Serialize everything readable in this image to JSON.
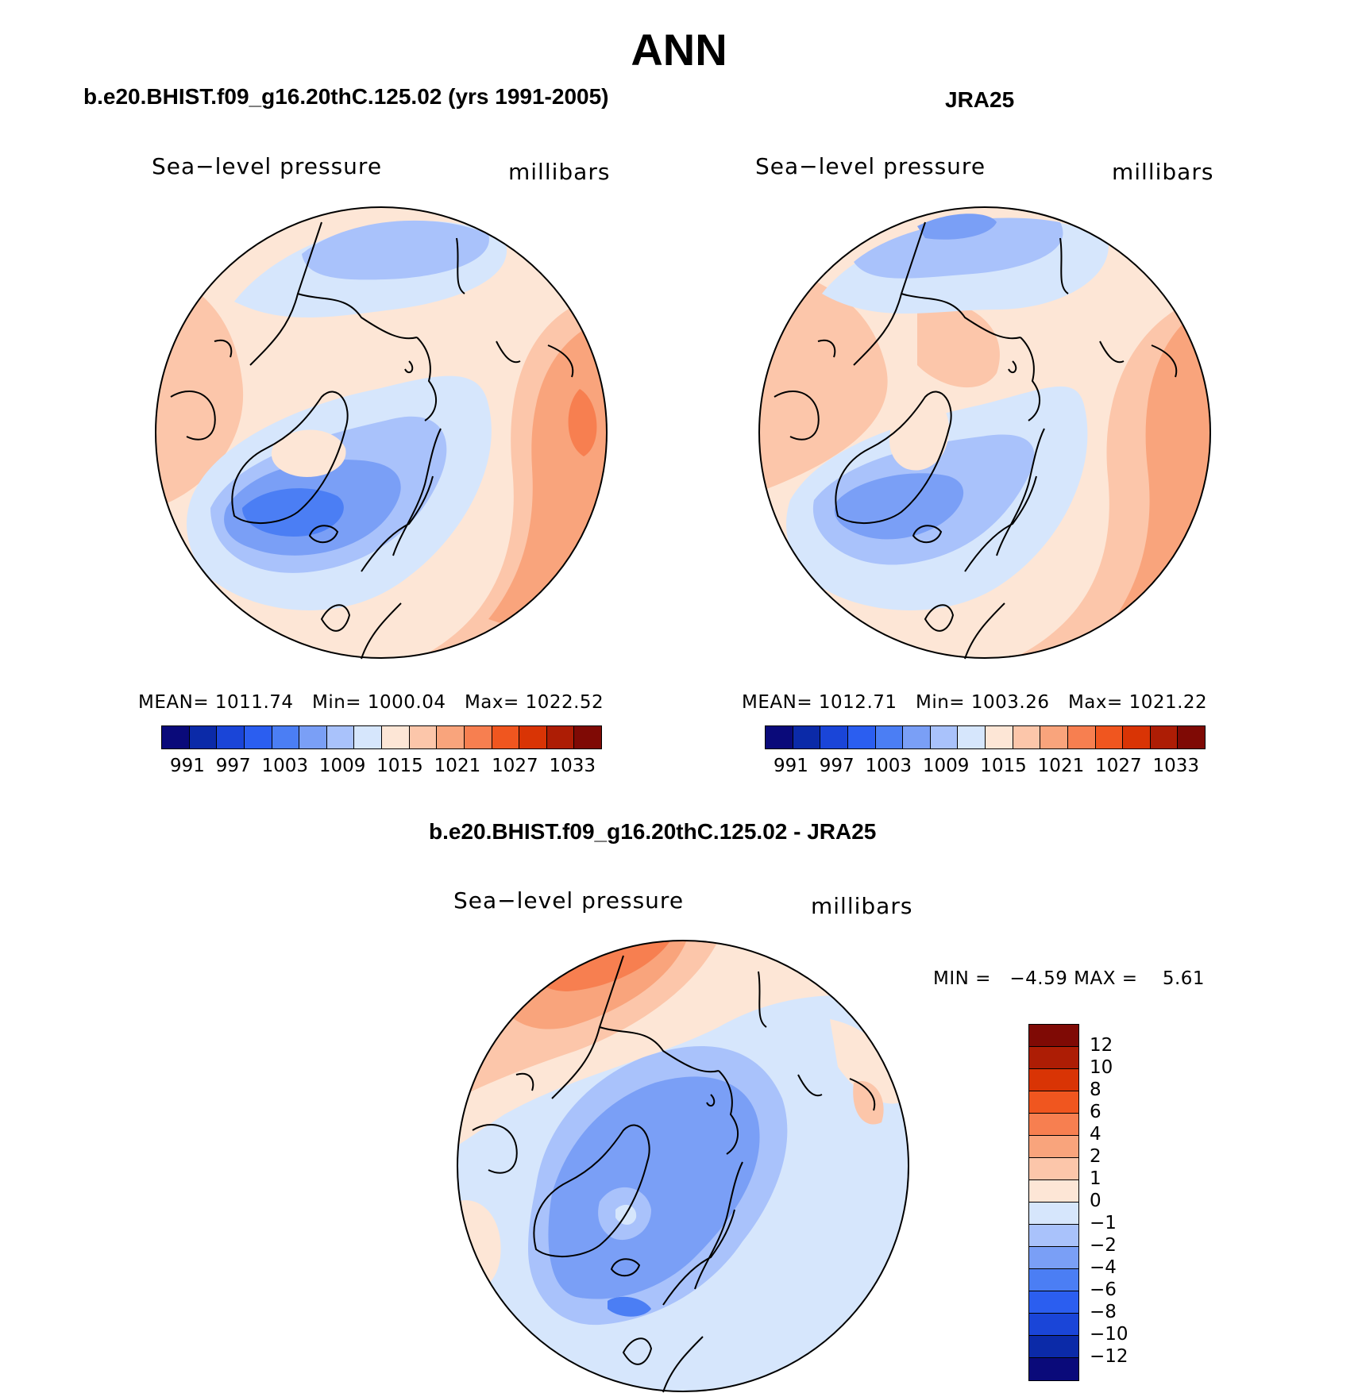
{
  "title": "ANN",
  "panels": [
    {
      "id": "model",
      "title": "b.e20.BHIST.f09_g16.20thC.125.02 (yrs 1991-2005)",
      "variable": "Sea−level pressure",
      "units": "millibars",
      "stats": {
        "mean_label": "MEAN=",
        "mean": "1011.74",
        "min_label": "Min=",
        "min": "1000.04",
        "max_label": "Max=",
        "max": "1022.52"
      }
    },
    {
      "id": "obs",
      "title": "JRA25",
      "variable": "Sea−level pressure",
      "units": "millibars",
      "stats": {
        "mean_label": "MEAN=",
        "mean": "1012.71",
        "min_label": "Min=",
        "min": "1003.26",
        "max_label": "Max=",
        "max": "1021.22"
      }
    },
    {
      "id": "diff",
      "title": "b.e20.BHIST.f09_g16.20thC.125.02 - JRA25",
      "variable": "Sea−level pressure",
      "units": "millibars",
      "stats": {
        "min_label": "MIN =",
        "min": "−4.59",
        "max_label": "MAX =",
        "max": "5.61"
      }
    }
  ],
  "abs_colorbar": {
    "colors": [
      "#0a0a7a",
      "#0b2aa8",
      "#1a45d8",
      "#2b5ef0",
      "#4b7ef4",
      "#7a9ff6",
      "#a9c2fb",
      "#d6e6fc",
      "#fde6d6",
      "#fcc6aa",
      "#f9a47c",
      "#f77f50",
      "#f0561f",
      "#d93405",
      "#ad1d05",
      "#7f0a05"
    ],
    "ticks": [
      "991",
      "997",
      "1003",
      "1009",
      "1015",
      "1021",
      "1027",
      "1033"
    ]
  },
  "diff_colorbar": {
    "colors": [
      "#7f0a05",
      "#ad1d05",
      "#d93405",
      "#f0561f",
      "#f77f50",
      "#f9a47c",
      "#fcc6aa",
      "#fde6d6",
      "#d6e6fc",
      "#a9c2fb",
      "#7a9ff6",
      "#4b7ef4",
      "#2b5ef0",
      "#1a45d8",
      "#0b2aa8",
      "#0a0a7a"
    ],
    "ticks": [
      "12",
      "10",
      "8",
      "6",
      "4",
      "2",
      "1",
      "0",
      "−1",
      "−2",
      "−4",
      "−6",
      "−8",
      "−10",
      "−12"
    ]
  },
  "map_colors": {
    "m4": "#4b7ef4",
    "m3": "#7a9ff6",
    "m2": "#a9c2fb",
    "m1": "#d6e6fc",
    "p1": "#fde6d6",
    "p2": "#fcc6aa",
    "p3": "#f9a47c",
    "p4": "#f77f50",
    "coast": "#000000"
  }
}
